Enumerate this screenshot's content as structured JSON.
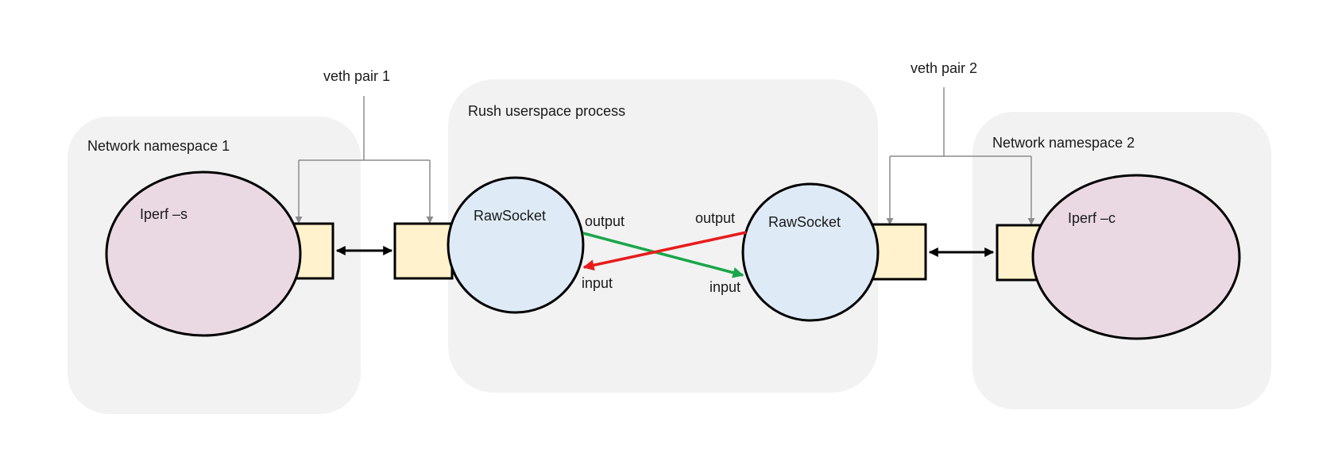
{
  "diagram": {
    "namespace1": {
      "title": "Network namespace 1",
      "process": "Iperf –s"
    },
    "namespace2": {
      "title": "Network namespace 2",
      "process": "Iperf –c"
    },
    "rush": {
      "title": "Rush userspace process",
      "socket_left": {
        "label": "RawSocket",
        "output": "output",
        "input": "input"
      },
      "socket_right": {
        "label": "RawSocket",
        "output": "output",
        "input": "input"
      }
    },
    "veth1": {
      "label": "veth pair 1"
    },
    "veth2": {
      "label": "veth pair 2"
    },
    "colors": {
      "container_bg": "#f2f2f2",
      "process_fill": "#ead9e3",
      "socket_fill": "#deebf7",
      "port_fill": "#fff2cc",
      "green_arrow": "#1aa64a",
      "red_arrow": "#e81c1c",
      "connector": "#8c8c8c"
    }
  }
}
